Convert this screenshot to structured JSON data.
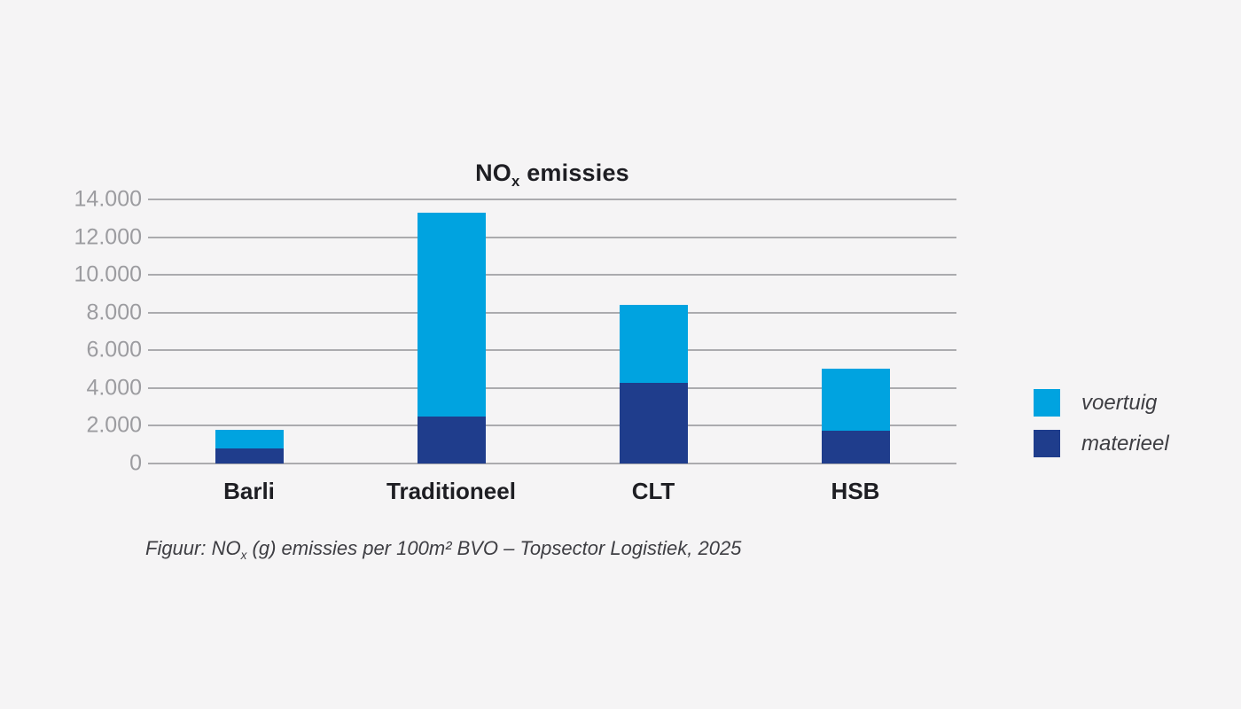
{
  "page": {
    "background": "#f5f4f5",
    "ink_color": "#1e1e23",
    "secondary_text_color": "#3e3e43"
  },
  "chart_data": {
    "type": "bar",
    "variant": "stacked",
    "title": {
      "prefix": "NO",
      "subscript": "x",
      "suffix": " emissies"
    },
    "categories": [
      "Barli",
      "Traditioneel",
      "CLT",
      "HSB"
    ],
    "series": [
      {
        "name": "materieel",
        "color": "#1f3d8c",
        "values": [
          800,
          2500,
          4300,
          1750
        ]
      },
      {
        "name": "voertuig",
        "color": "#00a3e0",
        "values": [
          1000,
          10800,
          4100,
          3300
        ]
      }
    ],
    "stack_order_bottom_to_top": [
      "materieel",
      "voertuig"
    ],
    "totals": [
      1800,
      13300,
      8400,
      5050
    ],
    "legend": [
      {
        "label": "voertuig",
        "color": "#00a3e0"
      },
      {
        "label": "materieel",
        "color": "#1f3d8c"
      }
    ],
    "legend_position": "right",
    "xlabel": "",
    "ylabel": "",
    "ylim": [
      0,
      14000
    ],
    "ytick_step": 2000,
    "ytick_labels": [
      "0",
      "2.000",
      "4.000",
      "6.000",
      "8.000",
      "10.000",
      "12.000",
      "14.000"
    ],
    "grid": true,
    "gridline_color": "#ababae",
    "axis_label_color": "#9c9ca0"
  },
  "caption": {
    "prefix": "Figuur: NO",
    "subscript": "x",
    "suffix": " (g) emissies per 100m² BVO – Topsector Logistiek, 2025"
  }
}
